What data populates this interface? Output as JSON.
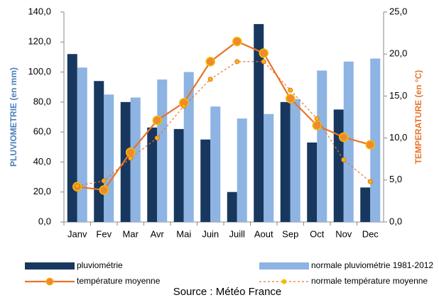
{
  "chart_data": {
    "type": "bar-line",
    "source": "Source : Météo France",
    "ylabel": "PLUVIOMETRIE (en mm)",
    "y2label": "TEMPERATURE (en °C)",
    "categories": [
      "Janv",
      "Fev",
      "Mar",
      "Avr",
      "Mai",
      "Juin",
      "Juill",
      "Aout",
      "Sep",
      "Oct",
      "Nov",
      "Dec"
    ],
    "ylim": [
      0,
      140
    ],
    "yticks": [
      {
        "value": 0,
        "label": "0,0"
      },
      {
        "value": 20,
        "label": "20,0"
      },
      {
        "value": 40,
        "label": "40,0"
      },
      {
        "value": 60,
        "label": "60,0"
      },
      {
        "value": 80,
        "label": "80,0"
      },
      {
        "value": 100,
        "label": "100,0"
      },
      {
        "value": 120,
        "label": "120,0"
      },
      {
        "value": 140,
        "label": "140,0"
      }
    ],
    "y2lim": [
      0,
      25
    ],
    "y2ticks": [
      {
        "value": 0,
        "label": "0,0"
      },
      {
        "value": 5,
        "label": "5,0"
      },
      {
        "value": 10,
        "label": "10,0"
      },
      {
        "value": 15,
        "label": "15,0"
      },
      {
        "value": 20,
        "label": "20,0"
      },
      {
        "value": 25,
        "label": "25,0"
      }
    ],
    "grid": false,
    "legend": "bottom",
    "series": [
      {
        "name": "pluviométrie",
        "type": "bar",
        "color": "#17375e",
        "values": [
          112,
          94,
          80,
          63,
          62,
          55,
          20,
          132,
          80,
          53,
          75,
          23
        ]
      },
      {
        "name": "normale pluviométrie 1981-2012",
        "type": "bar",
        "color": "#8db4e2",
        "values": [
          103,
          85,
          83,
          95,
          100,
          77,
          69,
          72,
          82,
          101,
          107,
          109
        ]
      },
      {
        "name": "température moyenne",
        "type": "line",
        "axis": "y2",
        "color": "#e8742a",
        "values": [
          4.2,
          3.8,
          8.3,
          12.1,
          14.2,
          19.1,
          21.5,
          20.1,
          14.7,
          11.5,
          10.1,
          9.2
        ]
      },
      {
        "name": "normale température moyenne",
        "type": "line",
        "axis": "y2",
        "color": "#e8742a",
        "dashed": true,
        "values": [
          4.3,
          4.9,
          7.6,
          10.0,
          13.8,
          17.0,
          19.1,
          19.1,
          15.7,
          12.3,
          7.4,
          4.8
        ]
      }
    ]
  }
}
